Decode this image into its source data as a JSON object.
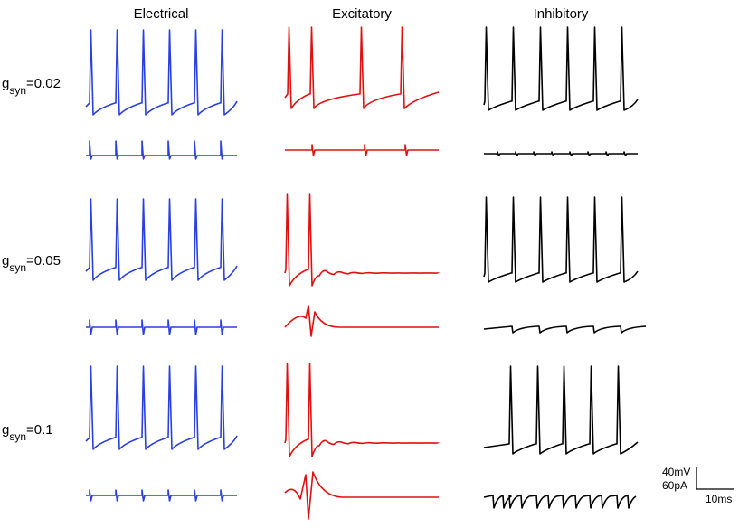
{
  "columns": [
    "Electrical",
    "Excitatory",
    "Inhibitory"
  ],
  "rows": [
    {
      "symbol": "g",
      "subscript": "syn",
      "value": "=0.02"
    },
    {
      "symbol": "g",
      "subscript": "syn",
      "value": "=0.05"
    },
    {
      "symbol": "g",
      "subscript": "syn",
      "value": "=0.1"
    }
  ],
  "scale_bar": {
    "voltage": "40mV",
    "current": "60pA",
    "time": "10ms"
  }
}
